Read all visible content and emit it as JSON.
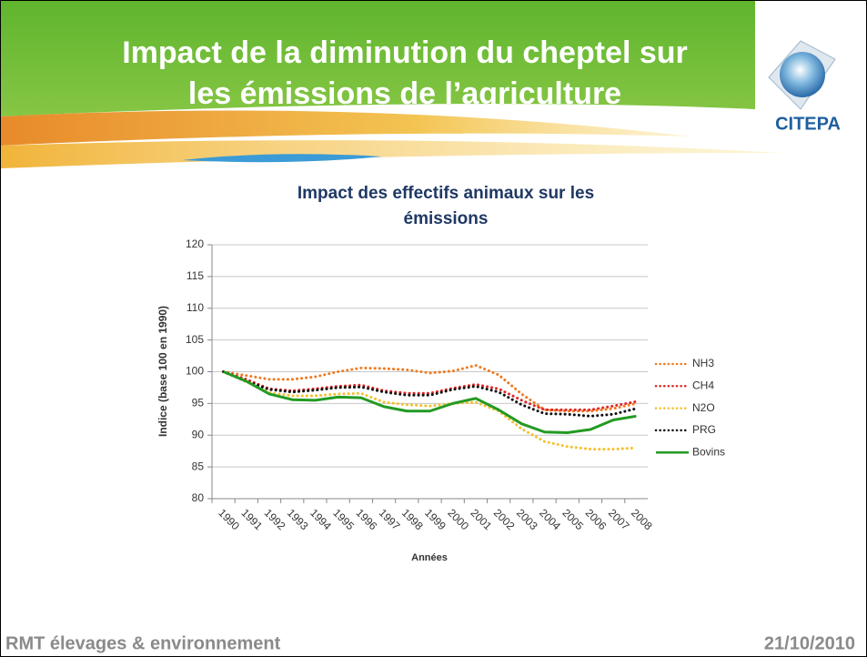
{
  "header": {
    "title_line1": "Impact de la diminution du cheptel sur",
    "title_line2": "les émissions de l’agriculture",
    "logo": "CITEPA"
  },
  "footer": {
    "left": "RMT élevages & environnement",
    "right": "21/10/2010"
  },
  "chart_data": {
    "type": "line",
    "title_line1": "Impact des effectifs animaux sur les",
    "title_line2": "émissions",
    "x_label": "Années",
    "y_label": "Indice (base 100 en 1990)",
    "categories": [
      "1990",
      "1991",
      "1992",
      "1993",
      "1994",
      "1995",
      "1996",
      "1997",
      "1998",
      "1999",
      "2000",
      "2001",
      "2002",
      "2003",
      "2004",
      "2005",
      "2006",
      "2007",
      "2008"
    ],
    "ylim": [
      80,
      120
    ],
    "yticks": [
      80,
      85,
      90,
      95,
      100,
      105,
      110,
      115,
      120
    ],
    "grid": true,
    "legend": "right",
    "series": [
      {
        "name": "NH3",
        "color": "#f07a1e",
        "style": "dotted",
        "values": [
          100,
          99.4,
          98.8,
          98.8,
          99.2,
          100.0,
          100.6,
          100.5,
          100.3,
          99.8,
          100.1,
          101.0,
          99.5,
          96.5,
          94.0,
          93.8,
          93.8,
          94.2,
          95.0
        ]
      },
      {
        "name": "CH4",
        "color": "#e02424",
        "style": "dotted",
        "values": [
          100,
          98.8,
          97.3,
          97.0,
          97.3,
          97.7,
          97.9,
          97.0,
          96.6,
          96.6,
          97.4,
          98.0,
          97.3,
          95.5,
          94.0,
          94.0,
          94.0,
          94.6,
          95.3
        ]
      },
      {
        "name": "N2O",
        "color": "#f5c02e",
        "style": "dotted",
        "values": [
          100,
          98.4,
          96.7,
          96.2,
          96.2,
          96.5,
          96.6,
          95.2,
          94.8,
          94.6,
          95.0,
          95.2,
          93.8,
          91.0,
          89.0,
          88.2,
          87.8,
          87.8,
          88.0
        ]
      },
      {
        "name": "PRG",
        "color": "#111111",
        "style": "dotted",
        "values": [
          100,
          98.5,
          97.2,
          96.8,
          97.1,
          97.5,
          97.6,
          96.8,
          96.3,
          96.3,
          97.2,
          97.7,
          96.8,
          94.8,
          93.4,
          93.3,
          93.0,
          93.3,
          94.2
        ]
      },
      {
        "name": "Bovins",
        "color": "#239a23",
        "style": "solid",
        "values": [
          100,
          98.5,
          96.5,
          95.6,
          95.5,
          96.0,
          95.9,
          94.5,
          93.8,
          93.8,
          95.0,
          95.8,
          94.0,
          91.8,
          90.5,
          90.4,
          90.9,
          92.4,
          93.0
        ]
      }
    ]
  }
}
